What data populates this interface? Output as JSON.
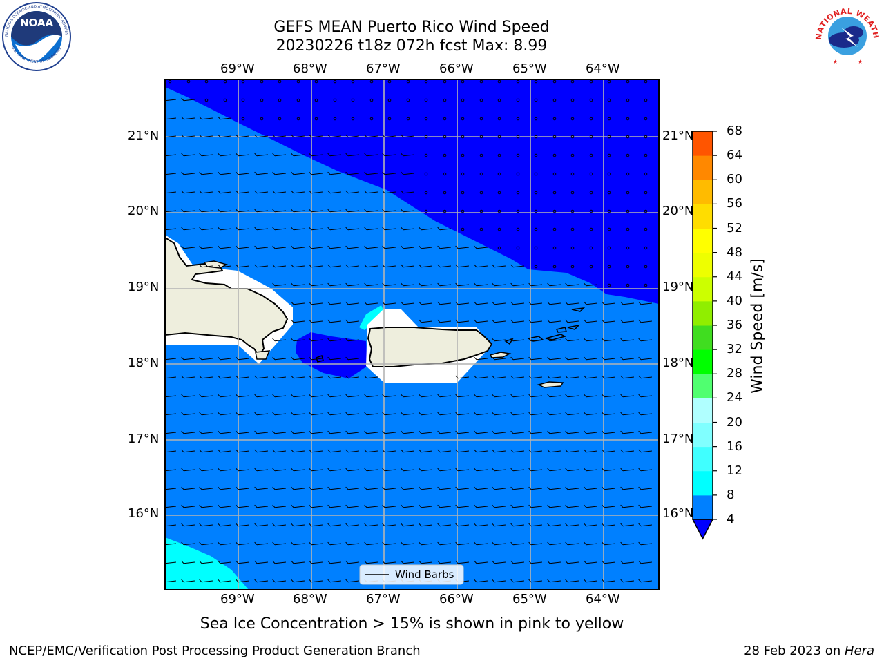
{
  "header": {
    "title_line1": "GEFS MEAN Puerto Rico Wind Speed",
    "title_line2": "20230226 t18z 072h fcst   Max: 8.99"
  },
  "logos": {
    "left": {
      "name": "NOAA",
      "ring_text": "NATIONAL OCEANIC AND ATMOSPHERIC ADMINISTRATION",
      "bottom_text": "U.S. DEPARTMENT OF COMMERCE"
    },
    "right": {
      "name": "NATIONAL WEATHER SERVICE"
    }
  },
  "map": {
    "lon_labels": [
      "69°W",
      "68°W",
      "67°W",
      "66°W",
      "65°W",
      "64°W"
    ],
    "lat_labels": [
      "21°N",
      "20°N",
      "19°N",
      "18°N",
      "17°N",
      "16°N"
    ],
    "legend_label": "Wind Barbs",
    "colors": {
      "land": "#eeeedd",
      "low": "#0000ff",
      "mid": "#0080ff",
      "cyan": "#00ffff",
      "gap": "#ffffff"
    }
  },
  "colorbar": {
    "label": "Wind Speed [m/s]",
    "ticks": [
      "4",
      "8",
      "12",
      "16",
      "20",
      "24",
      "28",
      "32",
      "36",
      "40",
      "44",
      "48",
      "52",
      "56",
      "60",
      "64",
      "68"
    ],
    "colors": [
      "#0080ff",
      "#00ffff",
      "#40ffff",
      "#80ffff",
      "#b0ffff",
      "#50ff70",
      "#00ff00",
      "#40dd20",
      "#90ee00",
      "#ccff00",
      "#eeff00",
      "#ffff00",
      "#ffdd00",
      "#ffbb00",
      "#ff8800",
      "#ff5500",
      "#ff2200",
      "#ff0000"
    ],
    "under_color": "#0000ff"
  },
  "caption": "Sea Ice Concentration > 15% is shown in pink to yellow",
  "footer": {
    "left": "NCEP/EMC/Verification Post Processing Product Generation Branch",
    "right_date": "28 Feb 2023 on ",
    "right_host": "Hera"
  }
}
